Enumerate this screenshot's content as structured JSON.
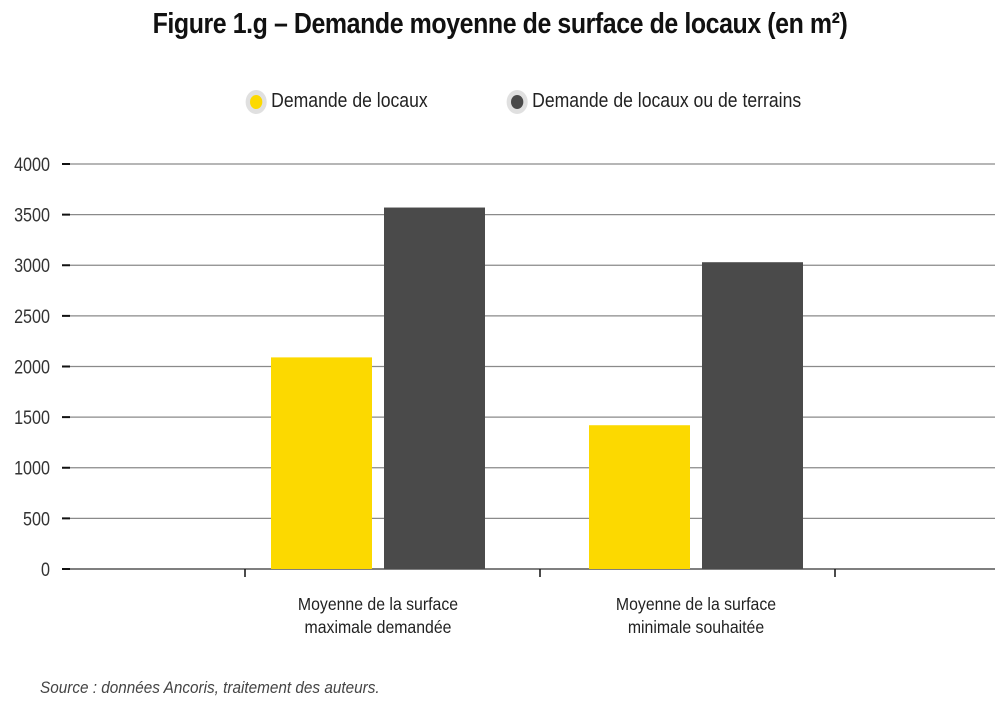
{
  "chart_data": {
    "type": "bar",
    "title": "Figure 1.g – Demande moyenne de surface de locaux (en m²)",
    "categories": [
      [
        "Moyenne de la surface",
        "maximale demandée"
      ],
      [
        "Moyenne de la surface",
        "minimale souhaitée"
      ]
    ],
    "series": [
      {
        "name": "Demande de locaux",
        "color": "#FCD900",
        "values": [
          2090,
          1420
        ]
      },
      {
        "name": "Demande de locaux ou de terrains",
        "color": "#4A4A4A",
        "values": [
          3570,
          3030
        ]
      }
    ],
    "ylim": [
      0,
      4000
    ],
    "yticks": [
      "0",
      "500",
      "1000",
      "1500",
      "2000",
      "2500",
      "3000",
      "3500",
      "4000"
    ],
    "xlabel": "",
    "ylabel": "",
    "grid": true,
    "legend_position": "top-center"
  },
  "source": "Source : données Ancoris, traitement des auteurs."
}
